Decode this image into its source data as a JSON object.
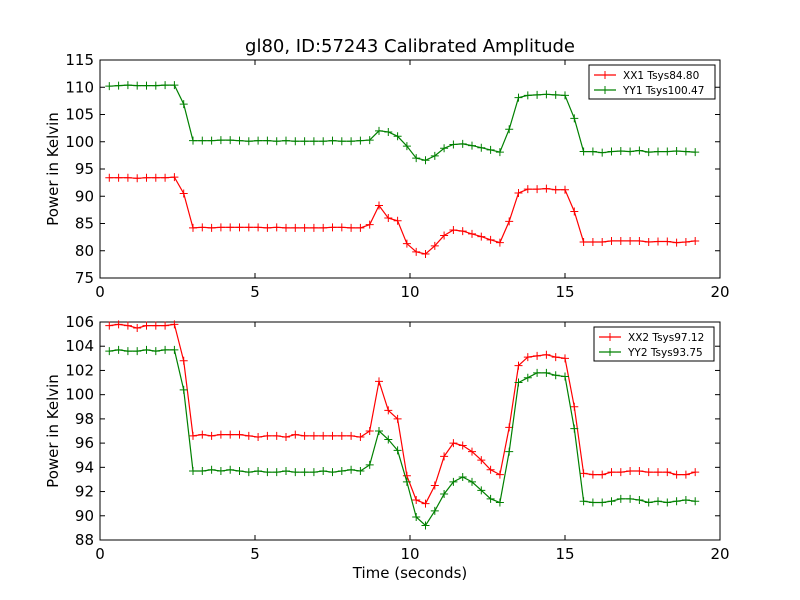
{
  "title": "gl80, ID:57243 Calibrated Amplitude",
  "colors": {
    "xx": "#ff0000",
    "yy": "#008000",
    "axes": "#000000",
    "background": "#ffffff"
  },
  "chart_data": [
    {
      "type": "line",
      "ylabel": "Power in Kelvin",
      "xlabel": "",
      "xlim": [
        0,
        20
      ],
      "ylim": [
        75,
        115
      ],
      "xticks": [
        0,
        5,
        10,
        15,
        20
      ],
      "yticks": [
        75,
        80,
        85,
        90,
        95,
        100,
        105,
        110,
        115
      ],
      "grid": false,
      "legend": "top-right",
      "x": [
        0.3,
        0.6,
        0.9,
        1.2,
        1.5,
        1.8,
        2.1,
        2.4,
        2.7,
        3.0,
        3.3,
        3.6,
        3.9,
        4.2,
        4.5,
        4.8,
        5.1,
        5.4,
        5.7,
        6.0,
        6.3,
        6.6,
        6.9,
        7.2,
        7.5,
        7.8,
        8.1,
        8.4,
        8.7,
        9.0,
        9.3,
        9.6,
        9.9,
        10.2,
        10.5,
        10.8,
        11.1,
        11.4,
        11.7,
        12.0,
        12.3,
        12.6,
        12.9,
        13.2,
        13.5,
        13.8,
        14.1,
        14.4,
        14.7,
        15.0,
        15.3,
        15.6,
        15.9,
        16.2,
        16.5,
        16.8,
        17.1,
        17.4,
        17.7,
        18.0,
        18.3,
        18.6,
        18.9,
        19.2
      ],
      "series": [
        {
          "name": "XX1 Tsys84.80",
          "color": "#ff0000",
          "values": [
            93.4,
            93.4,
            93.4,
            93.3,
            93.4,
            93.4,
            93.4,
            93.5,
            90.5,
            84.2,
            84.3,
            84.2,
            84.3,
            84.3,
            84.3,
            84.3,
            84.3,
            84.2,
            84.3,
            84.2,
            84.2,
            84.2,
            84.2,
            84.2,
            84.3,
            84.3,
            84.2,
            84.2,
            84.8,
            88.3,
            86.0,
            85.5,
            81.3,
            79.8,
            79.4,
            80.9,
            82.8,
            83.8,
            83.6,
            83.1,
            82.6,
            82.0,
            81.5,
            85.4,
            90.6,
            91.3,
            91.3,
            91.4,
            91.2,
            91.2,
            87.2,
            81.6,
            81.6,
            81.6,
            81.8,
            81.8,
            81.8,
            81.8,
            81.6,
            81.7,
            81.7,
            81.5,
            81.6,
            81.8
          ]
        },
        {
          "name": "YY1 Tsys100.47",
          "color": "#008000",
          "values": [
            110.2,
            110.3,
            110.4,
            110.3,
            110.3,
            110.3,
            110.4,
            110.4,
            106.9,
            100.2,
            100.2,
            100.2,
            100.3,
            100.3,
            100.2,
            100.1,
            100.2,
            100.2,
            100.1,
            100.2,
            100.1,
            100.1,
            100.1,
            100.1,
            100.2,
            100.1,
            100.1,
            100.2,
            100.3,
            102.0,
            101.8,
            101.0,
            99.2,
            97.0,
            96.6,
            97.4,
            98.8,
            99.5,
            99.6,
            99.3,
            98.9,
            98.5,
            98.1,
            102.3,
            108.1,
            108.5,
            108.6,
            108.7,
            108.6,
            108.5,
            104.3,
            98.2,
            98.2,
            98.0,
            98.2,
            98.3,
            98.2,
            98.4,
            98.1,
            98.2,
            98.2,
            98.3,
            98.2,
            98.1
          ]
        }
      ]
    },
    {
      "type": "line",
      "ylabel": "Power in Kelvin",
      "xlabel": "Time (seconds)",
      "xlim": [
        0,
        20
      ],
      "ylim": [
        88,
        106
      ],
      "xticks": [
        0,
        5,
        10,
        15,
        20
      ],
      "yticks": [
        88,
        90,
        92,
        94,
        96,
        98,
        100,
        102,
        104,
        106
      ],
      "grid": false,
      "legend": "top-right",
      "x": [
        0.3,
        0.6,
        0.9,
        1.2,
        1.5,
        1.8,
        2.1,
        2.4,
        2.7,
        3.0,
        3.3,
        3.6,
        3.9,
        4.2,
        4.5,
        4.8,
        5.1,
        5.4,
        5.7,
        6.0,
        6.3,
        6.6,
        6.9,
        7.2,
        7.5,
        7.8,
        8.1,
        8.4,
        8.7,
        9.0,
        9.3,
        9.6,
        9.9,
        10.2,
        10.5,
        10.8,
        11.1,
        11.4,
        11.7,
        12.0,
        12.3,
        12.6,
        12.9,
        13.2,
        13.5,
        13.8,
        14.1,
        14.4,
        14.7,
        15.0,
        15.3,
        15.6,
        15.9,
        16.2,
        16.5,
        16.8,
        17.1,
        17.4,
        17.7,
        18.0,
        18.3,
        18.6,
        18.9,
        19.2
      ],
      "series": [
        {
          "name": "XX2 Tsys97.12",
          "color": "#ff0000",
          "values": [
            105.7,
            105.8,
            105.7,
            105.5,
            105.7,
            105.7,
            105.7,
            105.8,
            102.8,
            96.6,
            96.7,
            96.6,
            96.7,
            96.7,
            96.7,
            96.6,
            96.5,
            96.6,
            96.6,
            96.5,
            96.7,
            96.6,
            96.6,
            96.6,
            96.6,
            96.6,
            96.6,
            96.5,
            97.0,
            101.1,
            98.7,
            98.0,
            93.3,
            91.3,
            91.0,
            92.5,
            94.9,
            96.0,
            95.8,
            95.3,
            94.6,
            93.8,
            93.4,
            97.3,
            102.4,
            103.1,
            103.2,
            103.3,
            103.1,
            103.0,
            99.0,
            93.5,
            93.4,
            93.4,
            93.6,
            93.6,
            93.7,
            93.7,
            93.6,
            93.6,
            93.6,
            93.4,
            93.4,
            93.6
          ]
        },
        {
          "name": "YY2 Tsys93.75",
          "color": "#008000",
          "values": [
            103.6,
            103.7,
            103.6,
            103.6,
            103.7,
            103.6,
            103.7,
            103.7,
            100.4,
            93.7,
            93.7,
            93.8,
            93.7,
            93.8,
            93.7,
            93.6,
            93.7,
            93.6,
            93.6,
            93.7,
            93.6,
            93.6,
            93.6,
            93.7,
            93.6,
            93.7,
            93.8,
            93.7,
            94.2,
            97.0,
            96.3,
            95.4,
            92.8,
            89.9,
            89.2,
            90.4,
            91.8,
            92.8,
            93.2,
            92.8,
            92.1,
            91.4,
            91.1,
            95.3,
            101.0,
            101.4,
            101.8,
            101.8,
            101.6,
            101.5,
            97.2,
            91.2,
            91.1,
            91.1,
            91.2,
            91.4,
            91.4,
            91.3,
            91.1,
            91.2,
            91.1,
            91.2,
            91.3,
            91.2
          ]
        }
      ]
    }
  ]
}
